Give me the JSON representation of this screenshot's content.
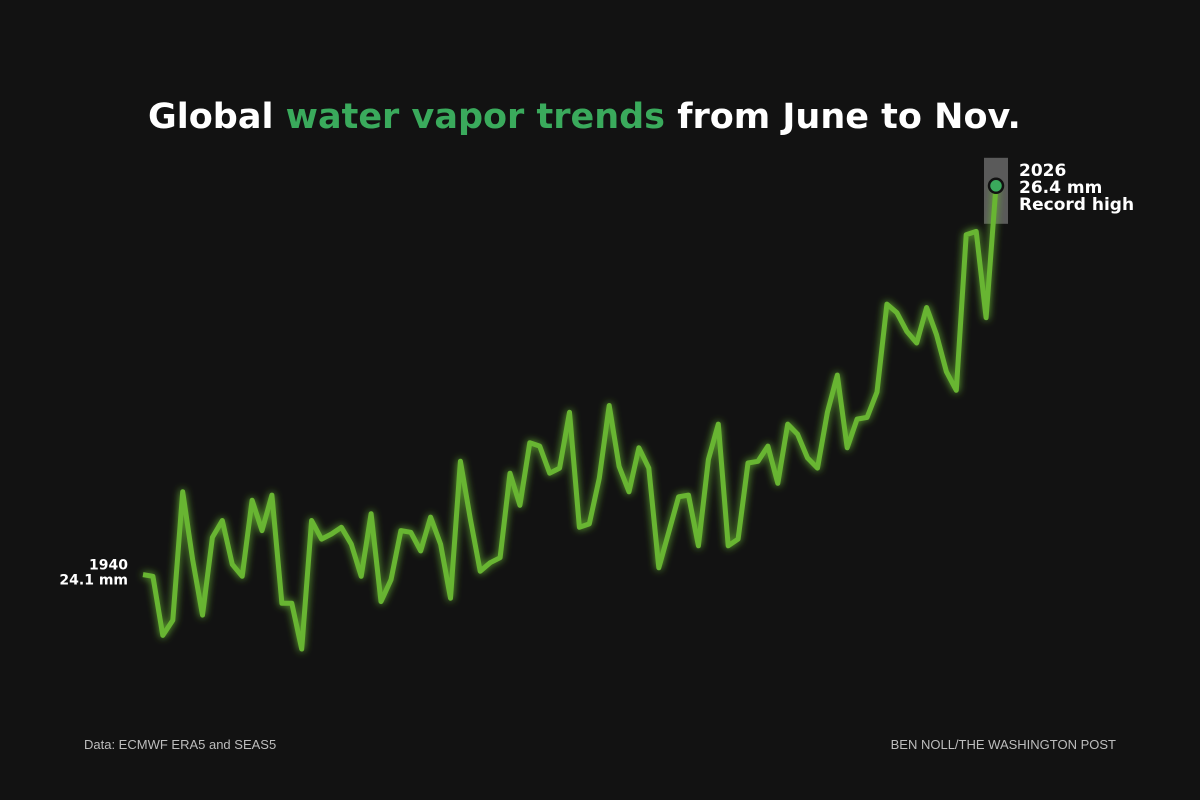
{
  "chart_data": {
    "type": "line",
    "title_parts": [
      "Global",
      "water vapor trends",
      "from June to Nov."
    ],
    "title_highlight_color": "#3aaa5c",
    "x": [
      1940,
      1941,
      1942,
      1943,
      1944,
      1945,
      1946,
      1947,
      1948,
      1949,
      1950,
      1951,
      1952,
      1953,
      1954,
      1955,
      1956,
      1957,
      1958,
      1959,
      1960,
      1961,
      1962,
      1963,
      1964,
      1965,
      1966,
      1967,
      1968,
      1969,
      1970,
      1971,
      1972,
      1973,
      1974,
      1975,
      1976,
      1977,
      1978,
      1979,
      1980,
      1981,
      1982,
      1983,
      1984,
      1985,
      1986,
      1987,
      1988,
      1989,
      1990,
      1991,
      1992,
      1993,
      1994,
      1995,
      1996,
      1997,
      1998,
      1999,
      2000,
      2001,
      2002,
      2003,
      2004,
      2005,
      2006,
      2007,
      2008,
      2009,
      2010,
      2011,
      2012,
      2013,
      2014,
      2015,
      2016,
      2017,
      2018,
      2019,
      2020,
      2021,
      2022,
      2023,
      2024,
      2025,
      2026
    ],
    "series": [
      {
        "color": "#67b530",
        "values": [
          24.1,
          24.09,
          23.74,
          23.83,
          24.59,
          24.19,
          23.86,
          24.32,
          24.42,
          24.16,
          24.09,
          24.54,
          24.36,
          24.57,
          23.93,
          23.93,
          23.66,
          24.42,
          24.31,
          24.34,
          24.38,
          24.28,
          24.09,
          24.46,
          23.94,
          24.07,
          24.36,
          24.35,
          24.24,
          24.44,
          24.28,
          23.96,
          24.77,
          24.43,
          24.12,
          24.17,
          24.2,
          24.7,
          24.51,
          24.88,
          24.86,
          24.7,
          24.73,
          25.06,
          24.38,
          24.4,
          24.67,
          25.1,
          24.74,
          24.59,
          24.85,
          24.73,
          24.14,
          24.35,
          24.56,
          24.57,
          24.27,
          24.78,
          24.99,
          24.27,
          24.31,
          24.76,
          24.77,
          24.86,
          24.64,
          24.99,
          24.93,
          24.79,
          24.73,
          25.06,
          25.28,
          24.85,
          25.02,
          25.03,
          25.18,
          25.7,
          25.65,
          25.54,
          25.47,
          25.68,
          25.52,
          25.3,
          25.19,
          26.11,
          26.13,
          25.62,
          26.4
        ]
      }
    ],
    "xlim": [
      1940,
      2026
    ],
    "ylim": [
      23.5,
      26.6
    ],
    "start_label": {
      "year": "1940",
      "value": "24.1 mm"
    },
    "end_label": {
      "year": "2026",
      "value": "26.4 mm",
      "note": "Record high"
    },
    "marker_color": "#3aaa5c",
    "source": "Data: ECMWF ERA5 and SEAS5",
    "credit": "BEN NOLL/THE WASHINGTON POST"
  }
}
